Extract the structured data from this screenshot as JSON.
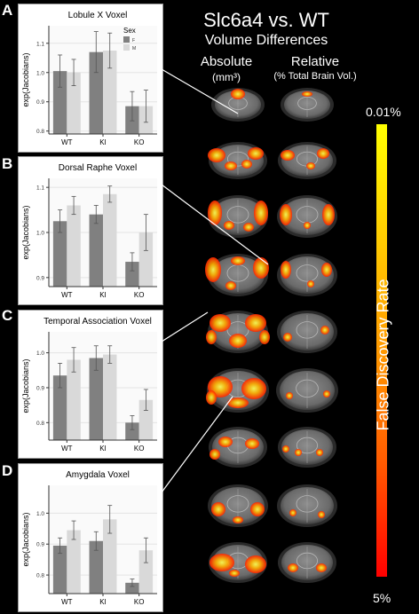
{
  "header": {
    "title": "Slc6a4 vs. WT",
    "subtitle": "Volume Differences",
    "absolute_label": "Absolute",
    "absolute_unit": "(mm³)",
    "relative_label": "Relative",
    "relative_unit": "(% Total Brain Vol.)"
  },
  "colorbar": {
    "title": "False Discovery Rate",
    "top_label": "0.01%",
    "bottom_label": "5%",
    "colors": [
      "#ffff00",
      "#ffcc00",
      "#ff9900",
      "#ff5a00",
      "#ff0000"
    ]
  },
  "panels": [
    {
      "letter": "A"
    },
    {
      "letter": "B"
    },
    {
      "letter": "C"
    },
    {
      "letter": "D"
    }
  ],
  "chart_data": [
    {
      "type": "bar",
      "title": "Lobule X Voxel",
      "ylabel": "exp(Jacobians)",
      "xlabel": "",
      "categories": [
        "WT",
        "KI",
        "KO"
      ],
      "ylim": [
        0.79,
        1.16
      ],
      "yticks": [
        0.8,
        0.9,
        1.0,
        1.1
      ],
      "yticklabels": [
        "0.8",
        "0.9",
        "1.0",
        "1.1"
      ],
      "legend": {
        "title": "Sex",
        "position": "top-right",
        "labels": [
          "F",
          "M"
        ]
      },
      "series": [
        {
          "name": "F",
          "color": "#808080",
          "values": [
            1.005,
            1.07,
            0.885
          ],
          "errors": [
            0.055,
            0.07,
            0.05
          ]
        },
        {
          "name": "M",
          "color": "#d9d9d9",
          "values": [
            1.0,
            1.075,
            0.885
          ],
          "errors": [
            0.045,
            0.06,
            0.055
          ]
        }
      ]
    },
    {
      "type": "bar",
      "title": "Dorsal Raphe Voxel",
      "ylabel": "exp(Jacobians)",
      "xlabel": "",
      "categories": [
        "WT",
        "KI",
        "KO"
      ],
      "ylim": [
        0.88,
        1.12
      ],
      "yticks": [
        0.9,
        1.0,
        1.1
      ],
      "yticklabels": [
        "0.9",
        "1.0",
        "1.1"
      ],
      "series": [
        {
          "name": "F",
          "color": "#808080",
          "values": [
            1.025,
            1.04,
            0.935
          ],
          "errors": [
            0.025,
            0.02,
            0.02
          ]
        },
        {
          "name": "M",
          "color": "#d9d9d9",
          "values": [
            1.06,
            1.085,
            1.0
          ],
          "errors": [
            0.02,
            0.018,
            0.04
          ]
        }
      ]
    },
    {
      "type": "bar",
      "title": "Temporal Association Voxel",
      "ylabel": "exp(Jacobians)",
      "xlabel": "",
      "categories": [
        "WT",
        "KI",
        "KO"
      ],
      "ylim": [
        0.75,
        1.06
      ],
      "yticks": [
        0.8,
        0.9,
        1.0
      ],
      "yticklabels": [
        "0.8",
        "0.9",
        "1.0"
      ],
      "series": [
        {
          "name": "F",
          "color": "#808080",
          "values": [
            0.935,
            0.985,
            0.8
          ],
          "errors": [
            0.035,
            0.035,
            0.02
          ]
        },
        {
          "name": "M",
          "color": "#d9d9d9",
          "values": [
            0.98,
            0.995,
            0.865
          ],
          "errors": [
            0.035,
            0.025,
            0.03
          ]
        }
      ]
    },
    {
      "type": "bar",
      "title": "Amygdala Voxel",
      "ylabel": "exp(Jacobians)",
      "xlabel": "",
      "categories": [
        "WT",
        "KI",
        "KO"
      ],
      "ylim": [
        0.74,
        1.09
      ],
      "yticks": [
        0.8,
        0.9,
        1.0
      ],
      "yticklabels": [
        "0.8",
        "0.9",
        "1.0"
      ],
      "series": [
        {
          "name": "F",
          "color": "#808080",
          "values": [
            0.895,
            0.91,
            0.775
          ],
          "errors": [
            0.025,
            0.03,
            0.012
          ]
        },
        {
          "name": "M",
          "color": "#d9d9d9",
          "values": [
            0.945,
            0.98,
            0.88
          ],
          "errors": [
            0.03,
            0.045,
            0.04
          ]
        }
      ]
    }
  ]
}
